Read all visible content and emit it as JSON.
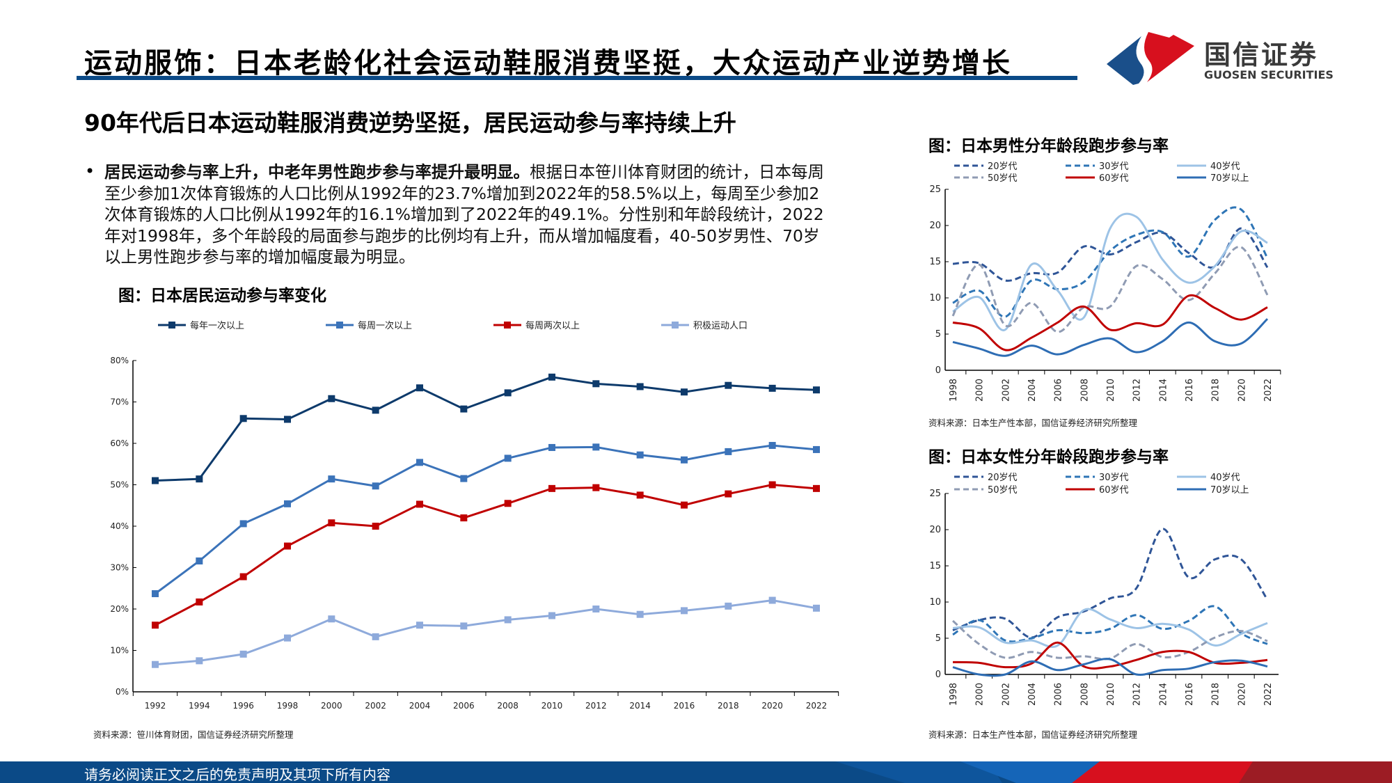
{
  "header": {
    "title": "运动服饰：日本老龄化社会运动鞋服消费坚挺，大众运动产业逆势增长",
    "logo_cn": "国信证券",
    "logo_en": "GUOSEN SECURITIES",
    "colors": {
      "brand_blue": "#0b4a87",
      "brand_red": "#d7101e"
    }
  },
  "subheading": "90年代后日本运动鞋服消费逆势坚挺，居民运动参与率持续上升",
  "bullet": {
    "bold": "居民运动参与率上升，中老年男性跑步参与率提升最明显。",
    "text": "根据日本笹川体育财团的统计，日本每周至少参加1次体育锻炼的人口比例从1992年的23.7%增加到2022年的58.5%以上，每周至少参加2次体育锻炼的人口比例从1992年的16.1%增加到了2022年的49.1%。分性别和年龄段统计，2022年对1998年，多个年龄段的局面参与跑步的比例均有上升，而从增加幅度看，40-50岁男性、70岁以上男性跑步参与率的增加幅度最为明显。"
  },
  "footer": {
    "text": "请务必阅读正文之后的免责声明及其项下所有内容"
  },
  "chart_data": [
    {
      "type": "line",
      "title": "图：日本居民运动参与率变化",
      "source": "资料来源：笹川体育财团，国信证券经济研究所整理",
      "categories": [
        "1992",
        "1994",
        "1996",
        "1998",
        "2000",
        "2002",
        "2004",
        "2006",
        "2008",
        "2010",
        "2012",
        "2014",
        "2016",
        "2018",
        "2020",
        "2022"
      ],
      "ylim": [
        0,
        80
      ],
      "yticks": [
        "0%",
        "10%",
        "20%",
        "30%",
        "40%",
        "50%",
        "60%",
        "70%",
        "80%"
      ],
      "legend": "top",
      "markers": "square",
      "series": [
        {
          "name": "每年一次以上",
          "color": "#0d3a6b",
          "values": [
            51.0,
            51.4,
            66.0,
            65.8,
            70.8,
            68.0,
            73.4,
            68.3,
            72.2,
            76.0,
            74.4,
            73.7,
            72.4,
            74.0,
            73.3,
            72.9
          ]
        },
        {
          "name": "每周一次以上",
          "color": "#3b73b9",
          "values": [
            23.7,
            31.6,
            40.6,
            45.4,
            51.4,
            49.7,
            55.4,
            51.5,
            56.4,
            59.0,
            59.1,
            57.2,
            56.0,
            58.0,
            59.5,
            58.5
          ]
        },
        {
          "name": "每周两次以上",
          "color": "#c00000",
          "values": [
            16.1,
            21.7,
            27.8,
            35.2,
            40.8,
            40.0,
            45.3,
            42.0,
            45.5,
            49.1,
            49.3,
            47.5,
            45.1,
            47.8,
            50.0,
            49.1
          ]
        },
        {
          "name": "积极运动人口",
          "color": "#8eaadb",
          "values": [
            6.6,
            7.5,
            9.1,
            13.0,
            17.6,
            13.3,
            16.1,
            15.9,
            17.4,
            18.4,
            20.0,
            18.7,
            19.6,
            20.7,
            22.1,
            20.2
          ]
        }
      ]
    },
    {
      "type": "line",
      "title": "图：日本男性分年龄段跑步参与率",
      "source": "资料来源：日本生产性本部，国信证券经济研究所整理",
      "categories": [
        "1998",
        "2000",
        "2002",
        "2004",
        "2006",
        "2008",
        "2010",
        "2012",
        "2014",
        "2016",
        "2018",
        "2020",
        "2022"
      ],
      "ylim": [
        0,
        25
      ],
      "yticks": [
        "0",
        "5",
        "10",
        "15",
        "20",
        "25"
      ],
      "legend": "top",
      "smooth": true,
      "series": [
        {
          "name": "20岁代",
          "color": "#2f5597",
          "dash": true,
          "values": [
            14.7,
            14.8,
            12.4,
            13.4,
            13.5,
            17.1,
            16.0,
            17.7,
            19.0,
            16.2,
            14.3,
            19.6,
            14.2
          ]
        },
        {
          "name": "30岁代",
          "color": "#2e75b6",
          "dash": true,
          "values": [
            9.3,
            11.0,
            7.4,
            12.4,
            11.2,
            12.2,
            16.5,
            18.7,
            19.1,
            15.7,
            20.8,
            22.2,
            15.5
          ]
        },
        {
          "name": "40岁代",
          "color": "#9dc3e6",
          "dash": false,
          "values": [
            8.1,
            10.1,
            5.6,
            14.6,
            11.0,
            7.3,
            19.6,
            21.2,
            15.3,
            12.1,
            14.4,
            19.2,
            17.6
          ]
        },
        {
          "name": "50岁代",
          "color": "#8f9bb3",
          "dash": true,
          "values": [
            7.5,
            14.6,
            6.2,
            9.3,
            5.3,
            8.7,
            8.8,
            14.4,
            12.6,
            9.7,
            13.4,
            17.0,
            10.4
          ]
        },
        {
          "name": "60岁代",
          "color": "#c00000",
          "dash": false,
          "values": [
            6.6,
            5.8,
            2.8,
            4.5,
            6.6,
            8.8,
            5.6,
            6.5,
            6.3,
            10.3,
            8.6,
            7.0,
            8.7
          ]
        },
        {
          "name": "70岁以上",
          "color": "#2e6db4",
          "dash": false,
          "values": [
            3.9,
            3.0,
            2.0,
            3.4,
            2.2,
            3.5,
            4.4,
            2.5,
            4.0,
            6.6,
            4.0,
            3.7,
            7.1
          ]
        }
      ]
    },
    {
      "type": "line",
      "title": "图：日本女性分年龄段跑步参与率",
      "source": "资料来源：日本生产性本部，国信证券经济研究所整理",
      "categories": [
        "1998",
        "2000",
        "2002",
        "2004",
        "2006",
        "2008",
        "2010",
        "2012",
        "2014",
        "2016",
        "2018",
        "2020",
        "2022"
      ],
      "ylim": [
        0,
        25
      ],
      "yticks": [
        "0",
        "5",
        "10",
        "15",
        "20",
        "25"
      ],
      "legend": "top",
      "smooth": true,
      "series": [
        {
          "name": "20岁代",
          "color": "#2f5597",
          "dash": true,
          "values": [
            6.1,
            7.5,
            7.7,
            5.1,
            7.9,
            8.7,
            10.5,
            11.9,
            20.1,
            13.4,
            15.9,
            15.9,
            10.3
          ]
        },
        {
          "name": "30岁代",
          "color": "#2e75b6",
          "dash": true,
          "values": [
            5.5,
            7.5,
            4.7,
            5.0,
            6.1,
            5.7,
            6.3,
            8.2,
            6.3,
            7.4,
            9.4,
            5.7,
            4.2
          ]
        },
        {
          "name": "40岁代",
          "color": "#9dc3e6",
          "dash": false,
          "values": [
            6.4,
            6.5,
            4.4,
            4.7,
            4.0,
            8.9,
            7.6,
            6.4,
            7.0,
            6.2,
            4.0,
            5.6,
            7.1
          ]
        },
        {
          "name": "50岁代",
          "color": "#8f9bb3",
          "dash": true,
          "values": [
            7.4,
            4.2,
            2.3,
            3.1,
            2.3,
            2.5,
            2.2,
            4.2,
            2.4,
            3.1,
            5.1,
            6.0,
            4.6
          ]
        },
        {
          "name": "60岁代",
          "color": "#c00000",
          "dash": false,
          "values": [
            1.7,
            1.6,
            1.0,
            1.5,
            4.4,
            1.1,
            1.1,
            2.0,
            3.1,
            3.1,
            1.6,
            1.6,
            2.0
          ]
        },
        {
          "name": "70岁以上",
          "color": "#2e6db4",
          "dash": false,
          "values": [
            1.0,
            0.0,
            0.0,
            1.8,
            0.6,
            1.4,
            2.1,
            0.0,
            0.6,
            0.8,
            1.7,
            1.9,
            1.1
          ]
        }
      ]
    }
  ]
}
